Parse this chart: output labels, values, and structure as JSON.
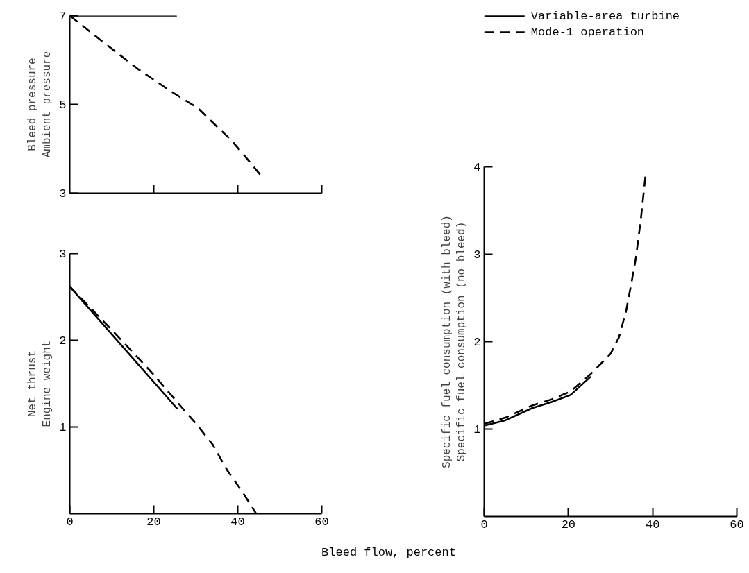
{
  "chart_data": [
    {
      "type": "line",
      "ylabel": "Bleed pressure\nAmbient pressure",
      "xlim": [
        0,
        60
      ],
      "xticks": [
        {
          "value": 20,
          "label": null
        },
        {
          "value": 40,
          "label": null
        },
        {
          "value": 60,
          "label": null
        }
      ],
      "ylim": [
        3,
        7
      ],
      "yticks": [
        3,
        5,
        7
      ],
      "tick_labels": "y",
      "grid": false,
      "series": [
        {
          "color": "#000000",
          "line_style": "solid",
          "x": [
            0,
            25.5
          ],
          "values": [
            7,
            7
          ]
        },
        {
          "color": "#000000",
          "line_style": "dashed",
          "x": [
            0,
            8,
            16.2,
            24,
            30.6,
            34.5,
            38.4,
            42,
            45.5
          ],
          "values": [
            7,
            6.4,
            5.8,
            5.3,
            4.91,
            4.55,
            4.2,
            3.8,
            3.4
          ]
        }
      ]
    },
    {
      "type": "line",
      "ylabel": "Net thrust\nEngine weight",
      "xlabel": "Bleed flow, percent",
      "xlim": [
        0,
        60
      ],
      "xticks": [
        0,
        20,
        40,
        60
      ],
      "ylim": [
        0,
        3
      ],
      "yticks": [
        1,
        2,
        3
      ],
      "grid": false,
      "series": [
        {
          "color": "#000000",
          "line_style": "solid",
          "x": [
            0,
            25.6
          ],
          "values": [
            2.62,
            1.21
          ]
        },
        {
          "color": "#000000",
          "line_style": "dashed",
          "x": [
            0,
            10,
            19.3,
            25,
            30.2,
            34,
            37.5,
            41,
            44.4
          ],
          "values": [
            2.62,
            2.12,
            1.64,
            1.32,
            1.03,
            0.8,
            0.5,
            0.26,
            0
          ]
        }
      ]
    },
    {
      "type": "line",
      "ylabel": "Specific fuel consumption (with bleed)\nSpecific fuel consumption (no bleed)",
      "xlim": [
        0,
        60
      ],
      "xticks": [
        0,
        20,
        40,
        60
      ],
      "ylim": [
        0,
        4
      ],
      "yticks": [
        1,
        2,
        3,
        4
      ],
      "grid": false,
      "legend": "top",
      "series": [
        {
          "name": "Variable-area turbine",
          "color": "#000000",
          "line_style": "solid",
          "x": [
            0,
            5,
            11.4,
            16,
            20.5,
            25.3
          ],
          "values": [
            1.04,
            1.1,
            1.24,
            1.31,
            1.39,
            1.6
          ]
        },
        {
          "name": "Mode-1 operation",
          "color": "#000000",
          "line_style": "dashed",
          "x": [
            0,
            5,
            11.4,
            16,
            20.5,
            25.3,
            30,
            32,
            33.7,
            34.8,
            36,
            37.2,
            38.3
          ],
          "values": [
            1.06,
            1.13,
            1.27,
            1.34,
            1.43,
            1.63,
            1.86,
            2.05,
            2.35,
            2.63,
            2.95,
            3.4,
            3.9
          ]
        }
      ]
    }
  ]
}
